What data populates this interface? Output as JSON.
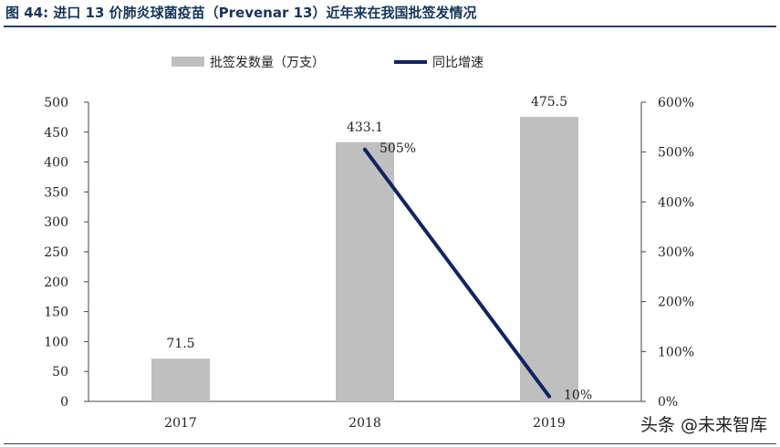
{
  "title": "图 44:  进口 13 价肺炎球菌疫苗（Prevenar 13）近年来在我国批签发情况",
  "watermark": "头条 @未来智库",
  "chart_data": {
    "type": "bar",
    "categories": [
      "2017",
      "2018",
      "2019"
    ],
    "series": [
      {
        "name": "批签发数量（万支）",
        "kind": "bar",
        "axis": "left",
        "values": [
          71.5,
          433.1,
          475.5
        ],
        "labels": [
          "71.5",
          "433.1",
          "475.5"
        ],
        "color": "#bfbfbf"
      },
      {
        "name": "同比增速",
        "kind": "line",
        "axis": "right",
        "values": [
          null,
          505,
          10
        ],
        "labels": [
          "",
          "505%",
          "10%"
        ],
        "color": "#0f2463"
      }
    ],
    "ylim_left": [
      0,
      500
    ],
    "yticks_left": [
      "0",
      "50",
      "100",
      "150",
      "200",
      "250",
      "300",
      "350",
      "400",
      "450",
      "500"
    ],
    "ylim_right": [
      0,
      600
    ],
    "yticks_right": [
      "0%",
      "100%",
      "200%",
      "300%",
      "400%",
      "500%",
      "600%"
    ],
    "legend_position": "top",
    "grid": false
  }
}
